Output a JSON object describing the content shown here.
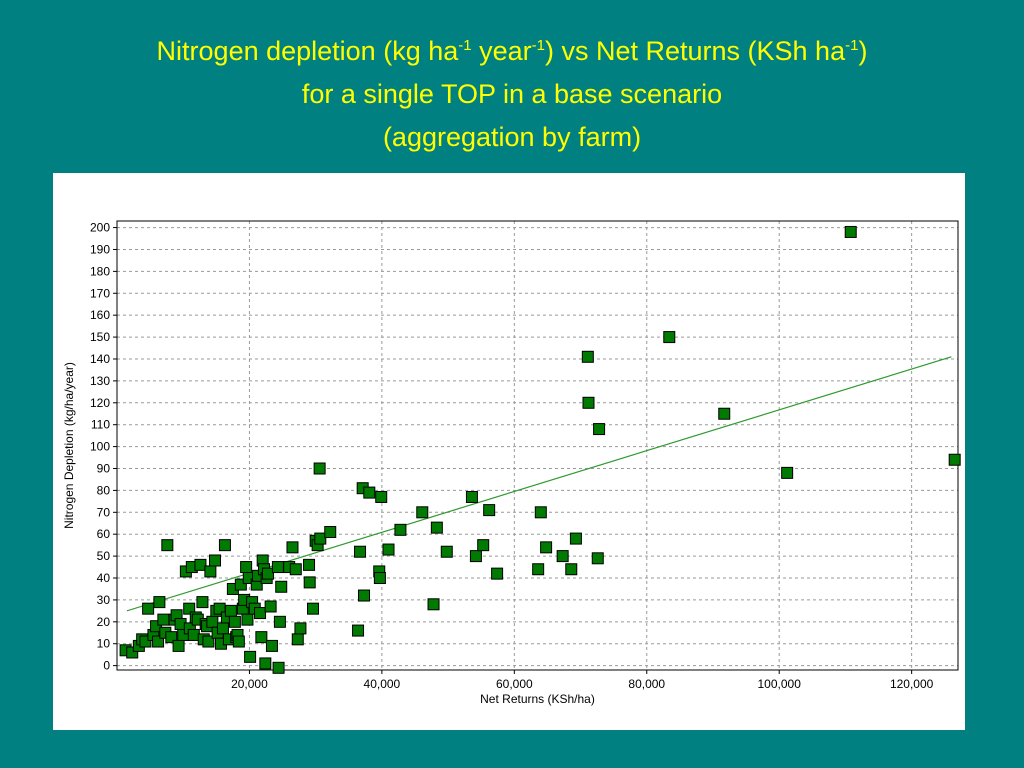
{
  "title": {
    "line1_a": "Nitrogen depletion (kg ha",
    "line1_sup1": "-1",
    "line1_b": " year",
    "line1_sup2": "-1",
    "line1_c": ") vs Net Returns (KSh ha",
    "line1_sup3": "-1",
    "line1_d": ")",
    "line2": "for a single TOP in a base scenario",
    "line3": "(aggregation by farm)"
  },
  "colors": {
    "background": "#008080",
    "title": "#ffff00",
    "marker_fill": "#007a00",
    "marker_stroke": "#000000",
    "trend_line": "#2e9a2e",
    "grid": "#9a9a9a"
  },
  "chart_data": {
    "type": "scatter",
    "xlabel": "Net Returns (KSh/ha)",
    "ylabel": "Nitrogen Depletion (kg/ha/year)",
    "xlim": [
      0,
      127000
    ],
    "ylim": [
      -2,
      203
    ],
    "x_ticks": [
      20000,
      40000,
      60000,
      80000,
      100000,
      120000
    ],
    "x_tick_labels": [
      "20,000",
      "40,000",
      "60,000",
      "80,000",
      "100,000",
      "120,000"
    ],
    "y_ticks": [
      0,
      10,
      20,
      30,
      40,
      50,
      60,
      70,
      80,
      90,
      100,
      110,
      120,
      130,
      140,
      150,
      160,
      170,
      180,
      190,
      200
    ],
    "y_tick_labels": [
      "0",
      "10",
      "20",
      "30",
      "40",
      "50",
      "60",
      "70",
      "80",
      "90",
      "100",
      "110",
      "120",
      "130",
      "140",
      "150",
      "160",
      "170",
      "180",
      "190",
      "200"
    ],
    "grid": true,
    "trendline": {
      "x": [
        1500,
        126000
      ],
      "y": [
        25,
        141
      ]
    },
    "points": [
      [
        1300,
        7
      ],
      [
        2300,
        6
      ],
      [
        3300,
        9
      ],
      [
        3800,
        12
      ],
      [
        4300,
        11
      ],
      [
        4700,
        26
      ],
      [
        5500,
        14
      ],
      [
        5900,
        18
      ],
      [
        6200,
        11
      ],
      [
        6400,
        29
      ],
      [
        7000,
        21
      ],
      [
        7300,
        15
      ],
      [
        7600,
        55
      ],
      [
        8200,
        13
      ],
      [
        8700,
        21
      ],
      [
        9000,
        23
      ],
      [
        9300,
        9
      ],
      [
        9600,
        19
      ],
      [
        10000,
        14
      ],
      [
        10400,
        43
      ],
      [
        10900,
        26
      ],
      [
        11000,
        17
      ],
      [
        11300,
        45
      ],
      [
        11600,
        14
      ],
      [
        11900,
        22
      ],
      [
        12200,
        21
      ],
      [
        12600,
        46
      ],
      [
        12900,
        29
      ],
      [
        13100,
        12
      ],
      [
        13400,
        19
      ],
      [
        13600,
        18
      ],
      [
        13800,
        11
      ],
      [
        14100,
        43
      ],
      [
        14400,
        20
      ],
      [
        14800,
        48
      ],
      [
        15000,
        25
      ],
      [
        15200,
        15
      ],
      [
        15500,
        26
      ],
      [
        15700,
        10
      ],
      [
        16000,
        17
      ],
      [
        16300,
        55
      ],
      [
        16600,
        22
      ],
      [
        16900,
        12
      ],
      [
        17200,
        25
      ],
      [
        17500,
        35
      ],
      [
        17800,
        20
      ],
      [
        18000,
        13
      ],
      [
        18200,
        14
      ],
      [
        18400,
        11
      ],
      [
        18700,
        37
      ],
      [
        19000,
        26
      ],
      [
        19200,
        30
      ],
      [
        19500,
        45
      ],
      [
        19700,
        21
      ],
      [
        19900,
        40
      ],
      [
        20100,
        4
      ],
      [
        20400,
        29
      ],
      [
        20800,
        26
      ],
      [
        21100,
        37
      ],
      [
        21300,
        41
      ],
      [
        21600,
        24
      ],
      [
        21800,
        13
      ],
      [
        22000,
        48
      ],
      [
        22200,
        44
      ],
      [
        22400,
        1
      ],
      [
        22600,
        40
      ],
      [
        22800,
        42
      ],
      [
        23200,
        27
      ],
      [
        23400,
        9
      ],
      [
        24300,
        45
      ],
      [
        24400,
        -1
      ],
      [
        24600,
        20
      ],
      [
        24800,
        36
      ],
      [
        26000,
        45
      ],
      [
        26500,
        54
      ],
      [
        27000,
        44
      ],
      [
        27300,
        12
      ],
      [
        27700,
        17
      ],
      [
        29000,
        46
      ],
      [
        29100,
        38
      ],
      [
        29600,
        26
      ],
      [
        30000,
        57
      ],
      [
        30300,
        55
      ],
      [
        30600,
        90
      ],
      [
        30700,
        58
      ],
      [
        32200,
        61
      ],
      [
        36400,
        16
      ],
      [
        36700,
        52
      ],
      [
        37100,
        81
      ],
      [
        37300,
        32
      ],
      [
        38100,
        79
      ],
      [
        39600,
        43
      ],
      [
        39700,
        40
      ],
      [
        39900,
        77
      ],
      [
        41000,
        53
      ],
      [
        42800,
        62
      ],
      [
        46100,
        70
      ],
      [
        47800,
        28
      ],
      [
        48300,
        63
      ],
      [
        49800,
        52
      ],
      [
        53600,
        77
      ],
      [
        54200,
        50
      ],
      [
        55300,
        55
      ],
      [
        56200,
        71
      ],
      [
        57400,
        42
      ],
      [
        63600,
        44
      ],
      [
        64000,
        70
      ],
      [
        64800,
        54
      ],
      [
        67300,
        50
      ],
      [
        68600,
        44
      ],
      [
        69300,
        58
      ],
      [
        71100,
        141
      ],
      [
        71200,
        120
      ],
      [
        72600,
        49
      ],
      [
        72800,
        108
      ],
      [
        83400,
        150
      ],
      [
        91700,
        115
      ],
      [
        101200,
        88
      ],
      [
        110800,
        198
      ],
      [
        126500,
        94
      ]
    ]
  }
}
